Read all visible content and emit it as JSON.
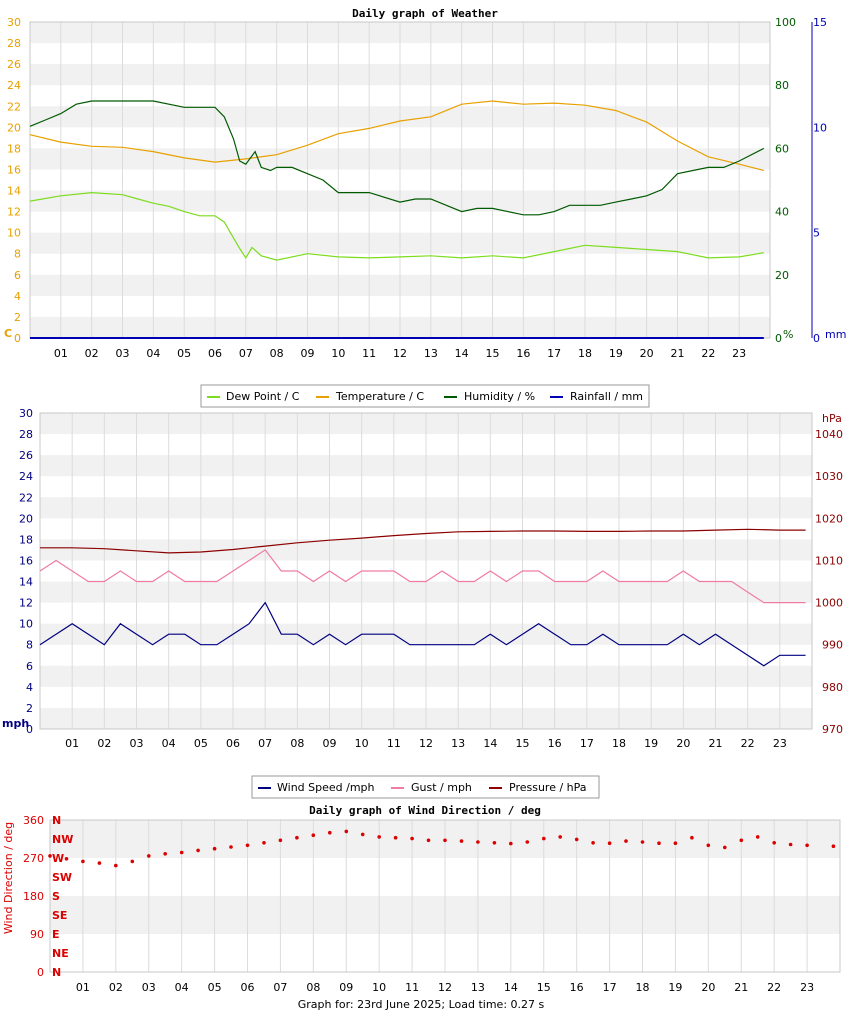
{
  "colors": {
    "dew_point": "#7cdc1e",
    "temperature": "#e8a000",
    "humidity": "#005a00",
    "rainfall": "#0000b4",
    "wind_speed": "#000080",
    "gust": "#f07ca0",
    "pressure": "#8c0000",
    "wind_direction": "#dc0000",
    "grid_band": "#f1f1f1",
    "grid_line": "#dcdcdc"
  },
  "footer": "Graph for: 23rd June 2025; Load time: 0.27 s",
  "chart_data": [
    {
      "type": "line",
      "title": "Daily graph of Weather",
      "x_categories": [
        "01",
        "02",
        "03",
        "04",
        "05",
        "06",
        "07",
        "08",
        "09",
        "10",
        "11",
        "12",
        "13",
        "14",
        "15",
        "16",
        "17",
        "18",
        "19",
        "20",
        "21",
        "22",
        "23"
      ],
      "xlim": [
        0,
        24
      ],
      "y_axes": {
        "temperature": {
          "range": [
            0,
            30
          ],
          "ticks": [
            "0",
            "2",
            "4",
            "6",
            "8",
            "10",
            "12",
            "14",
            "16",
            "18",
            "20",
            "22",
            "24",
            "26",
            "28",
            "30"
          ],
          "unit_label": "C"
        },
        "humidity": {
          "range": [
            0,
            100
          ],
          "ticks": [
            "0",
            "20",
            "40",
            "60",
            "80",
            "100"
          ],
          "unit_label": "%"
        },
        "rainfall": {
          "range": [
            0,
            15
          ],
          "ticks": [
            "0",
            "5",
            "10",
            "15"
          ],
          "unit_label": "mm"
        }
      },
      "legend": [
        "Dew Point / C",
        "Temperature / C",
        "Humidity / %",
        "Rainfall / mm"
      ],
      "legend_position": "bottom",
      "series": [
        {
          "name": "Dew Point / C",
          "axis": "temperature",
          "x": [
            0,
            1,
            2,
            3,
            3.5,
            4,
            4.5,
            5,
            5.5,
            6,
            6.3,
            6.5,
            6.8,
            7,
            7.2,
            7.5,
            8,
            9,
            10,
            11,
            12,
            13,
            14,
            15,
            16,
            17,
            18,
            19,
            20,
            21,
            22,
            23,
            23.8
          ],
          "y": [
            13,
            13.5,
            13.8,
            13.6,
            13.2,
            12.8,
            12.5,
            12.0,
            11.6,
            11.6,
            11.0,
            10.0,
            8.5,
            7.6,
            8.6,
            7.8,
            7.4,
            8.0,
            7.7,
            7.6,
            7.7,
            7.8,
            7.6,
            7.8,
            7.6,
            8.2,
            8.8,
            8.6,
            8.4,
            8.2,
            7.6,
            7.7,
            8.1
          ]
        },
        {
          "name": "Temperature / C",
          "axis": "temperature",
          "x": [
            0,
            1,
            2,
            3,
            4,
            5,
            6,
            7,
            8,
            9,
            10,
            11,
            12,
            13,
            14,
            15,
            16,
            17,
            18,
            19,
            20,
            21,
            22,
            23,
            23.8
          ],
          "y": [
            19.3,
            18.6,
            18.2,
            18.1,
            17.7,
            17.1,
            16.7,
            17.0,
            17.4,
            18.3,
            19.4,
            19.9,
            20.6,
            21.0,
            22.2,
            22.5,
            22.2,
            22.3,
            22.1,
            21.6,
            20.5,
            18.7,
            17.2,
            16.5,
            15.9
          ]
        },
        {
          "name": "Humidity / %",
          "axis": "humidity",
          "x": [
            0,
            0.5,
            1,
            1.5,
            2,
            3,
            4,
            5,
            5.5,
            6,
            6.3,
            6.6,
            6.8,
            7,
            7.3,
            7.5,
            7.8,
            8,
            8.5,
            9,
            9.5,
            10,
            11,
            12,
            12.5,
            13,
            13.5,
            14,
            14.5,
            15,
            15.5,
            16,
            16.5,
            17,
            17.5,
            18,
            18.5,
            19,
            19.5,
            20,
            20.5,
            21,
            21.5,
            22,
            22.5,
            23,
            23.8
          ],
          "y": [
            67,
            69,
            71,
            74,
            75,
            75,
            75,
            73,
            73,
            73,
            70,
            63,
            56,
            55,
            59,
            54,
            53,
            54,
            54,
            52,
            50,
            46,
            46,
            43,
            44,
            44,
            42,
            40,
            41,
            41,
            40,
            39,
            39,
            40,
            42,
            42,
            42,
            43,
            44,
            45,
            47,
            52,
            53,
            54,
            54,
            56,
            60
          ]
        },
        {
          "name": "Rainfall / mm",
          "axis": "rainfall",
          "x": [
            0,
            23.8
          ],
          "y": [
            0,
            0
          ]
        }
      ]
    },
    {
      "type": "line",
      "title": "",
      "x_categories": [
        "01",
        "02",
        "03",
        "04",
        "05",
        "06",
        "07",
        "08",
        "09",
        "10",
        "11",
        "12",
        "13",
        "14",
        "15",
        "16",
        "17",
        "18",
        "19",
        "20",
        "21",
        "22",
        "23"
      ],
      "xlim": [
        0,
        24
      ],
      "y_axes": {
        "wind": {
          "range": [
            0,
            30
          ],
          "ticks": [
            "0",
            "2",
            "4",
            "6",
            "8",
            "10",
            "12",
            "14",
            "16",
            "18",
            "20",
            "22",
            "24",
            "26",
            "28",
            "30"
          ],
          "unit_label": "mph"
        },
        "pressure": {
          "range": [
            970,
            1045
          ],
          "ticks": [
            "970",
            "980",
            "990",
            "1000",
            "1010",
            "1020",
            "1030",
            "1040"
          ],
          "unit_label": "hPa"
        }
      },
      "legend": [
        "Wind Speed /mph",
        "Gust / mph",
        "Pressure / hPa"
      ],
      "legend_position": "bottom",
      "series": [
        {
          "name": "Wind Speed /mph",
          "axis": "wind",
          "x": [
            0,
            0.5,
            1,
            1.5,
            2,
            2.5,
            3,
            3.5,
            4,
            4.5,
            5,
            5.5,
            6,
            6.5,
            7,
            7.5,
            8,
            8.5,
            9,
            9.5,
            10,
            10.5,
            11,
            11.5,
            12,
            12.5,
            13,
            13.5,
            14,
            14.5,
            15,
            15.5,
            16,
            16.5,
            17,
            17.5,
            18,
            18.5,
            19,
            19.5,
            20,
            20.5,
            21,
            21.5,
            22,
            22.5,
            23,
            23.8
          ],
          "y": [
            8,
            9,
            10,
            9,
            8,
            10,
            9,
            8,
            9,
            9,
            8,
            8,
            9,
            10,
            12,
            9,
            9,
            8,
            9,
            8,
            9,
            9,
            9,
            8,
            8,
            8,
            8,
            8,
            9,
            8,
            9,
            10,
            9,
            8,
            8,
            9,
            8,
            8,
            8,
            8,
            9,
            8,
            9,
            8,
            7,
            6,
            7,
            7
          ]
        },
        {
          "name": "Gust / mph",
          "axis": "wind",
          "x": [
            0,
            0.5,
            1,
            1.5,
            2,
            2.5,
            3,
            3.5,
            4,
            4.5,
            5,
            5.5,
            6,
            6.5,
            7,
            7.5,
            8,
            8.5,
            9,
            9.5,
            10,
            10.5,
            11,
            11.5,
            12,
            12.5,
            13,
            13.5,
            14,
            14.5,
            15,
            15.5,
            16,
            16.5,
            17,
            17.5,
            18,
            18.5,
            19,
            19.5,
            20,
            20.5,
            21,
            21.5,
            22,
            22.5,
            23,
            23.8
          ],
          "y": [
            15,
            16,
            15,
            14,
            14,
            15,
            14,
            14,
            15,
            14,
            14,
            14,
            15,
            16,
            17,
            15,
            15,
            14,
            15,
            14,
            15,
            15,
            15,
            14,
            14,
            15,
            14,
            14,
            15,
            14,
            15,
            15,
            14,
            14,
            14,
            15,
            14,
            14,
            14,
            14,
            15,
            14,
            14,
            14,
            13,
            12,
            12,
            12
          ]
        },
        {
          "name": "Pressure / hPa",
          "axis": "pressure",
          "x": [
            0,
            1,
            2,
            3,
            4,
            5,
            6,
            7,
            8,
            9,
            10,
            11,
            12,
            13,
            14,
            15,
            16,
            17,
            18,
            19,
            20,
            21,
            22,
            23,
            23.8
          ],
          "y": [
            1013,
            1013,
            1012.8,
            1012.3,
            1011.8,
            1012.0,
            1012.6,
            1013.4,
            1014.2,
            1014.8,
            1015.3,
            1015.9,
            1016.4,
            1016.8,
            1016.9,
            1017.0,
            1017.0,
            1016.9,
            1016.9,
            1017.0,
            1017.0,
            1017.2,
            1017.4,
            1017.2,
            1017.2
          ]
        }
      ]
    },
    {
      "type": "scatter",
      "title": "Daily graph of Wind Direction / deg",
      "x_categories": [
        "01",
        "02",
        "03",
        "04",
        "05",
        "06",
        "07",
        "08",
        "09",
        "10",
        "11",
        "12",
        "13",
        "14",
        "15",
        "16",
        "17",
        "18",
        "19",
        "20",
        "21",
        "22",
        "23"
      ],
      "xlim": [
        0,
        24
      ],
      "ylim": [
        0,
        360
      ],
      "y_ticks": [
        "0",
        "90",
        "180",
        "270",
        "360"
      ],
      "compass_labels": [
        "N",
        "NE",
        "E",
        "SE",
        "S",
        "SW",
        "W",
        "NW",
        "N"
      ],
      "ylabel": "Wind Direction / deg",
      "series": [
        {
          "name": "Wind Direction / deg",
          "x": [
            0,
            0.5,
            1,
            1.5,
            2,
            2.5,
            3,
            3.5,
            4,
            4.5,
            5,
            5.5,
            6,
            6.5,
            7,
            7.5,
            8,
            8.5,
            9,
            9.5,
            10,
            10.5,
            11,
            11.5,
            12,
            12.5,
            13,
            13.5,
            14,
            14.5,
            15,
            15.5,
            16,
            16.5,
            17,
            17.5,
            18,
            18.5,
            19,
            19.5,
            20,
            20.5,
            21,
            21.5,
            22,
            22.5,
            23,
            23.8
          ],
          "y": [
            275,
            268,
            262,
            258,
            252,
            262,
            275,
            280,
            283,
            288,
            292,
            296,
            300,
            306,
            312,
            318,
            324,
            330,
            333,
            326,
            320,
            318,
            316,
            312,
            312,
            310,
            308,
            306,
            304,
            308,
            316,
            320,
            314,
            306,
            305,
            310,
            308,
            305,
            305,
            318,
            300,
            295,
            312,
            320,
            306,
            302,
            300,
            298
          ]
        }
      ]
    }
  ]
}
